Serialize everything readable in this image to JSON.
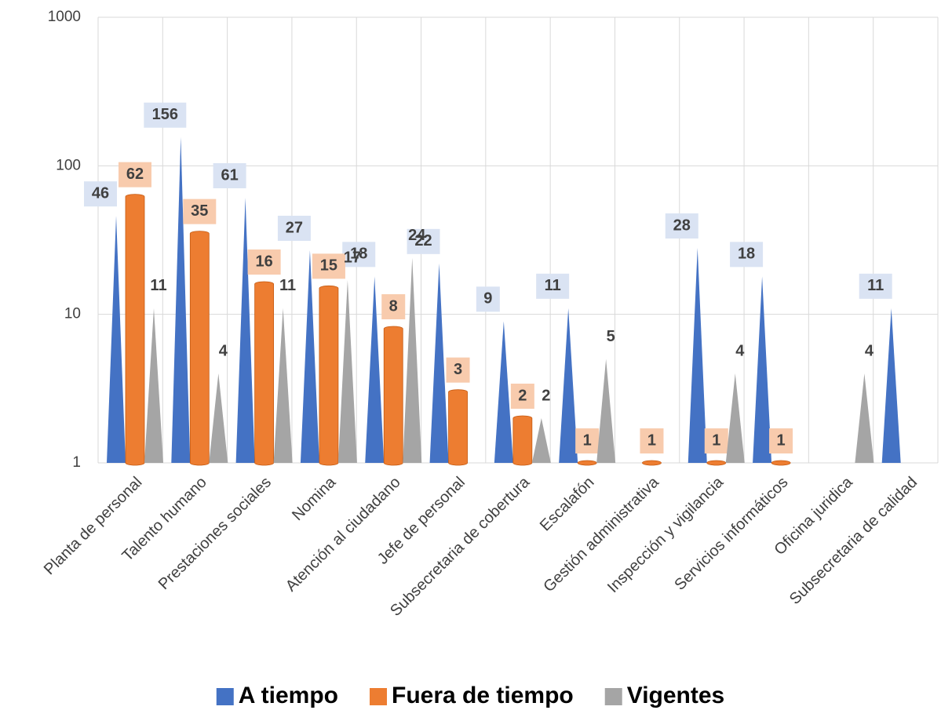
{
  "chart_data": {
    "type": "bar3d",
    "categories": [
      "Planta de personal",
      "Talento humano",
      "Prestaciones sociales",
      "Nomina",
      "Atención al ciudadano",
      "Jefe de personal",
      "Subsecretaria de cobertura",
      "Escalafón",
      "Gestión administrativa",
      "Inspección y vigilancia",
      "Servicios informáticos",
      "Oficina juridica",
      "Subsecretaria de calidad"
    ],
    "series": [
      {
        "name": "A tiempo",
        "color": "#4472c4",
        "label_bg": "#dae3f3",
        "shape": "cone",
        "values": [
          46,
          156,
          61,
          27,
          18,
          22,
          9,
          11,
          null,
          28,
          18,
          null,
          11
        ]
      },
      {
        "name": "Fuera de tiempo",
        "color": "#ed7d31",
        "label_bg": "#f8cbad",
        "shape": "cylinder",
        "values": [
          62,
          35,
          16,
          15,
          8,
          3,
          2,
          1,
          1,
          1,
          1,
          null,
          null
        ]
      },
      {
        "name": "Vigentes",
        "color": "#a5a5a5",
        "label_bg": null,
        "shape": "cone",
        "values": [
          11,
          4,
          11,
          17,
          24,
          null,
          2,
          5,
          null,
          4,
          null,
          4,
          null
        ]
      }
    ],
    "log_scale": true,
    "ylim": [
      1,
      1000
    ],
    "yticks": [
      1,
      10,
      100,
      1000
    ],
    "grid": true,
    "legend": "bottom"
  }
}
